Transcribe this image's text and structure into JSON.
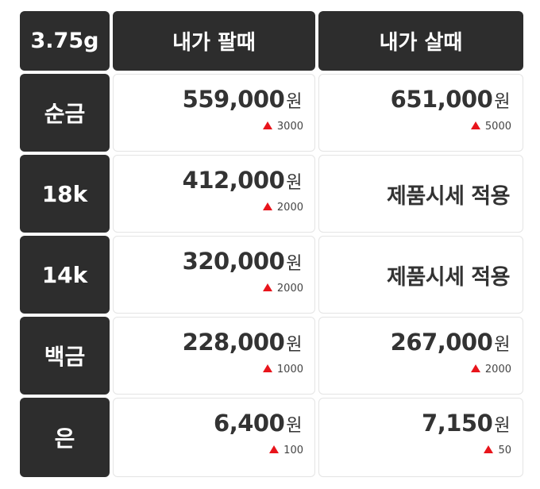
{
  "header": {
    "weight": "3.75g",
    "sell_label": "내가 팔때",
    "buy_label": "내가 살때"
  },
  "unit": "원",
  "colors": {
    "header_bg": "#2d2d2d",
    "up_arrow": "#e8141b"
  },
  "rows": [
    {
      "label": "순금",
      "sell": {
        "price": "559,000",
        "change": "3000"
      },
      "buy": {
        "price": "651,000",
        "change": "5000"
      }
    },
    {
      "label": "18k",
      "sell": {
        "price": "412,000",
        "change": "2000"
      },
      "buy": {
        "note": "제품시세 적용"
      }
    },
    {
      "label": "14k",
      "sell": {
        "price": "320,000",
        "change": "2000"
      },
      "buy": {
        "note": "제품시세 적용"
      }
    },
    {
      "label": "백금",
      "sell": {
        "price": "228,000",
        "change": "1000"
      },
      "buy": {
        "price": "267,000",
        "change": "2000"
      }
    },
    {
      "label": "은",
      "sell": {
        "price": "6,400",
        "change": "100"
      },
      "buy": {
        "price": "7,150",
        "change": "50"
      }
    }
  ]
}
